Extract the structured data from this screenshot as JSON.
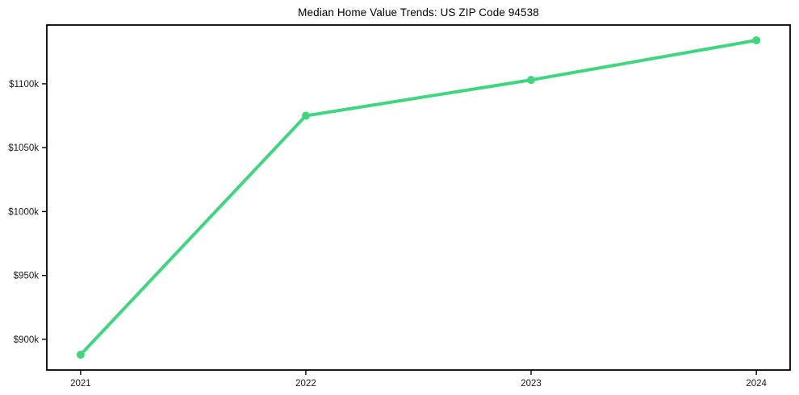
{
  "chart_data": {
    "type": "line",
    "title": "Median Home Value Trends: US ZIP Code 94538",
    "categories": [
      "2021",
      "2022",
      "2023",
      "2024"
    ],
    "series": [
      {
        "name": "Median Home Value",
        "values": [
          888,
          1075,
          1103,
          1134
        ]
      }
    ],
    "value_unit": "thousand USD",
    "xlabel": "",
    "ylabel": "",
    "ylim": [
      876,
      1146
    ],
    "yticks": [
      {
        "value": 900,
        "label": "$900k"
      },
      {
        "value": 950,
        "label": "$950k"
      },
      {
        "value": 1000,
        "label": "$1000k"
      },
      {
        "value": 1050,
        "label": "$1050k"
      },
      {
        "value": 1100,
        "label": "$1100k"
      }
    ],
    "grid": false,
    "legend": false,
    "colors": {
      "line": "#3fd67f",
      "marker": "#3fd67f",
      "frame": "#000000",
      "tick": "#000000",
      "text": "#1a1a1a",
      "background": "#ffffff"
    }
  }
}
